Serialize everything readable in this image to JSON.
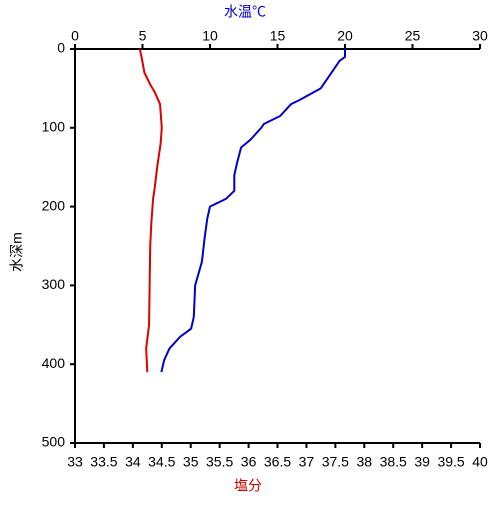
{
  "chart_data": {
    "type": "line",
    "xlabel": "塩分",
    "x2label": "水温℃",
    "ylabel": "水深m",
    "xlim": [
      33,
      40
    ],
    "xticks": [
      33,
      33.5,
      34,
      34.5,
      35,
      35.5,
      36,
      36.5,
      37,
      37.5,
      38,
      38.5,
      39,
      39.5,
      40
    ],
    "x2lim": [
      0,
      30
    ],
    "x2ticks": [
      0,
      5,
      10,
      15,
      20,
      25,
      30
    ],
    "ylim": [
      0,
      500
    ],
    "yticks": [
      0,
      100,
      200,
      300,
      400,
      500
    ],
    "y_inverted": true,
    "xlabel_color": "#cc0000",
    "x2label_color": "#0000cc",
    "series": [
      {
        "axis": "x2",
        "color": "#0000cc",
        "x": [
          20.0,
          20.0,
          19.6,
          19.0,
          18.2,
          16.6,
          16.0,
          15.2,
          14.0,
          13.8,
          13.0,
          12.3,
          12.0,
          11.8,
          11.8,
          11.2,
          10.0,
          9.8,
          9.6,
          9.4,
          8.9,
          8.8,
          8.6,
          7.8,
          7.0,
          6.6,
          6.4
        ],
        "y": [
          0,
          10,
          15,
          30,
          50,
          65,
          70,
          85,
          95,
          100,
          115,
          125,
          145,
          160,
          180,
          190,
          200,
          215,
          240,
          270,
          300,
          340,
          355,
          365,
          380,
          395,
          410
        ]
      },
      {
        "axis": "x",
        "color": "#dd0000",
        "x": [
          34.12,
          34.15,
          34.2,
          34.3,
          34.38,
          34.47,
          34.5,
          34.48,
          34.45,
          34.42,
          34.38,
          34.35,
          34.32,
          34.3,
          34.29,
          34.28,
          34.23,
          34.25
        ],
        "y": [
          0,
          10,
          30,
          45,
          55,
          70,
          100,
          120,
          135,
          150,
          175,
          190,
          220,
          250,
          300,
          350,
          380,
          410
        ]
      }
    ]
  }
}
